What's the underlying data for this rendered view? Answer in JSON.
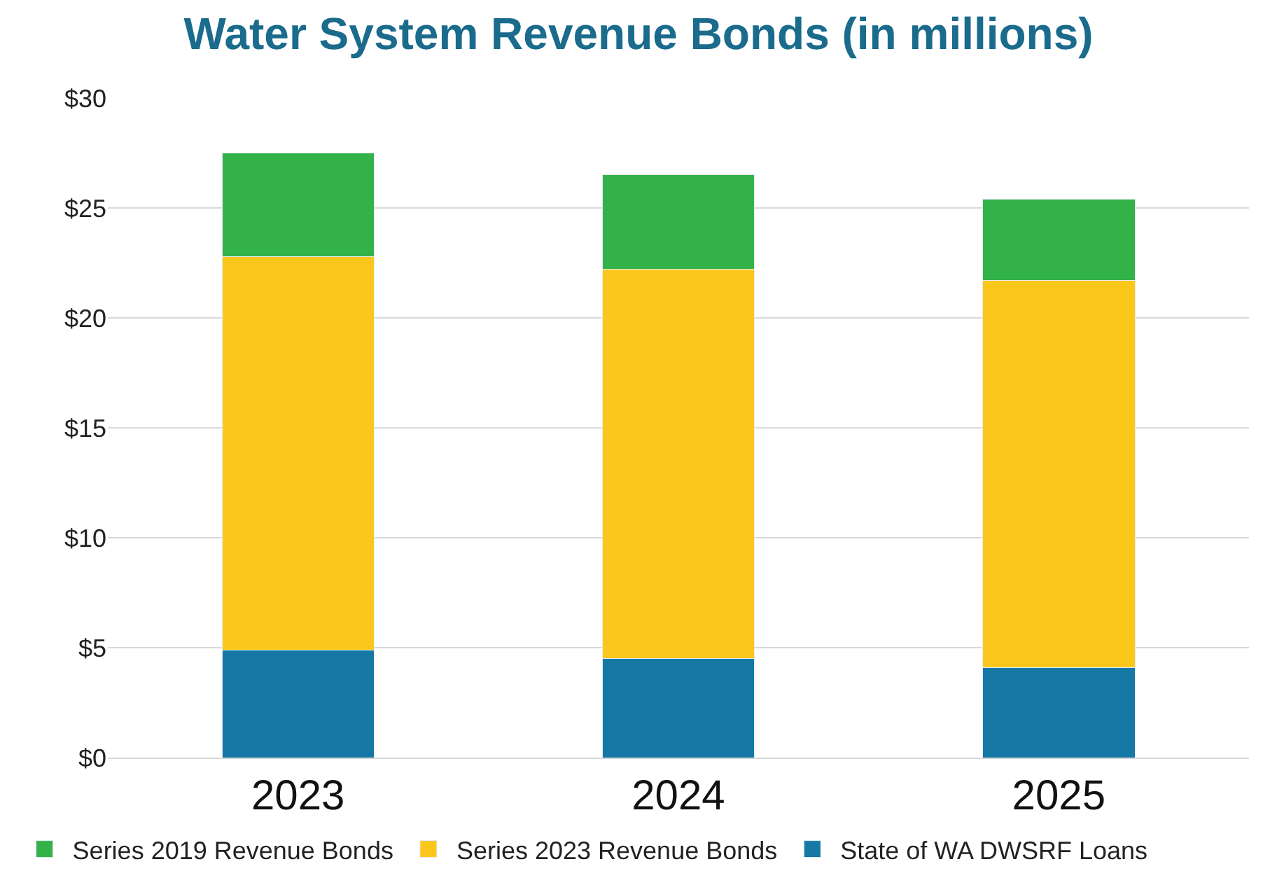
{
  "chart_data": {
    "type": "bar",
    "stacked": true,
    "title": "Water System Revenue Bonds (in millions)",
    "categories": [
      "2023",
      "2024",
      "2025"
    ],
    "series": [
      {
        "name": "State of WA DWSRF Loans",
        "color": "#1578a5",
        "values": [
          4.9,
          4.5,
          4.1
        ]
      },
      {
        "name": "Series 2023 Revenue Bonds",
        "color": "#fcc71b",
        "values": [
          17.9,
          17.7,
          17.6
        ]
      },
      {
        "name": "Series 2019 Revenue Bonds",
        "color": "#33b249",
        "values": [
          4.7,
          4.3,
          3.7
        ]
      }
    ],
    "ylim": [
      0,
      30
    ],
    "yticks": [
      {
        "value": 0,
        "label": "$0"
      },
      {
        "value": 5,
        "label": "$5"
      },
      {
        "value": 10,
        "label": "$10"
      },
      {
        "value": 15,
        "label": "$15"
      },
      {
        "value": 20,
        "label": "$20"
      },
      {
        "value": 25,
        "label": "$25"
      },
      {
        "value": 30,
        "label": "$30"
      }
    ],
    "grid": "y",
    "legend": "bottom"
  }
}
